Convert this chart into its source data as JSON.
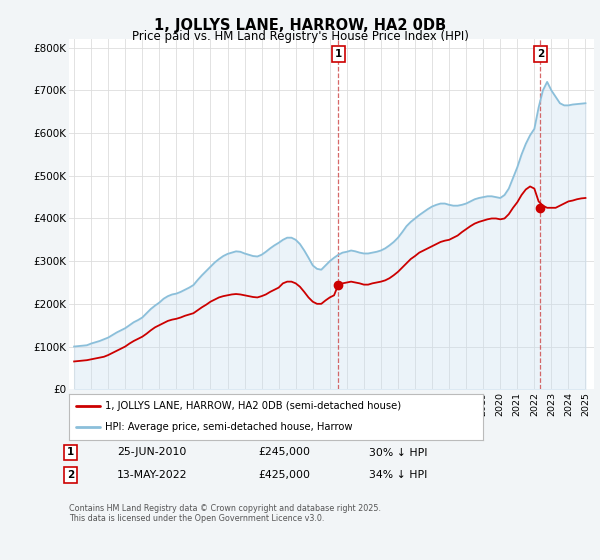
{
  "title": "1, JOLLYS LANE, HARROW, HA2 0DB",
  "subtitle": "Price paid vs. HM Land Registry's House Price Index (HPI)",
  "legend_label_red": "1, JOLLYS LANE, HARROW, HA2 0DB (semi-detached house)",
  "legend_label_blue": "HPI: Average price, semi-detached house, Harrow",
  "annotation1_date": "25-JUN-2010",
  "annotation1_price": "£245,000",
  "annotation1_hpi": "30% ↓ HPI",
  "annotation2_date": "13-MAY-2022",
  "annotation2_price": "£425,000",
  "annotation2_hpi": "34% ↓ HPI",
  "footer": "Contains HM Land Registry data © Crown copyright and database right 2025.\nThis data is licensed under the Open Government Licence v3.0.",
  "red_color": "#cc0000",
  "blue_color": "#8bbfda",
  "fill_color": "#c8dff0",
  "bg_color": "#f2f5f7",
  "plot_bg": "#ffffff",
  "ylim": [
    0,
    820000
  ],
  "yticks": [
    0,
    100000,
    200000,
    300000,
    400000,
    500000,
    600000,
    700000,
    800000
  ],
  "ytick_labels": [
    "£0",
    "£100K",
    "£200K",
    "£300K",
    "£400K",
    "£500K",
    "£600K",
    "£700K",
    "£800K"
  ],
  "hpi_x": [
    1995.0,
    1995.25,
    1995.5,
    1995.75,
    1996.0,
    1996.25,
    1996.5,
    1996.75,
    1997.0,
    1997.25,
    1997.5,
    1997.75,
    1998.0,
    1998.25,
    1998.5,
    1998.75,
    1999.0,
    1999.25,
    1999.5,
    1999.75,
    2000.0,
    2000.25,
    2000.5,
    2000.75,
    2001.0,
    2001.25,
    2001.5,
    2001.75,
    2002.0,
    2002.25,
    2002.5,
    2002.75,
    2003.0,
    2003.25,
    2003.5,
    2003.75,
    2004.0,
    2004.25,
    2004.5,
    2004.75,
    2005.0,
    2005.25,
    2005.5,
    2005.75,
    2006.0,
    2006.25,
    2006.5,
    2006.75,
    2007.0,
    2007.25,
    2007.5,
    2007.75,
    2008.0,
    2008.25,
    2008.5,
    2008.75,
    2009.0,
    2009.25,
    2009.5,
    2009.75,
    2010.0,
    2010.25,
    2010.5,
    2010.75,
    2011.0,
    2011.25,
    2011.5,
    2011.75,
    2012.0,
    2012.25,
    2012.5,
    2012.75,
    2013.0,
    2013.25,
    2013.5,
    2013.75,
    2014.0,
    2014.25,
    2014.5,
    2014.75,
    2015.0,
    2015.25,
    2015.5,
    2015.75,
    2016.0,
    2016.25,
    2016.5,
    2016.75,
    2017.0,
    2017.25,
    2017.5,
    2017.75,
    2018.0,
    2018.25,
    2018.5,
    2018.75,
    2019.0,
    2019.25,
    2019.5,
    2019.75,
    2020.0,
    2020.25,
    2020.5,
    2020.75,
    2021.0,
    2021.25,
    2021.5,
    2021.75,
    2022.0,
    2022.25,
    2022.5,
    2022.75,
    2023.0,
    2023.25,
    2023.5,
    2023.75,
    2024.0,
    2024.25,
    2024.5,
    2024.75,
    2025.0
  ],
  "hpi_y": [
    100000,
    101000,
    102000,
    103000,
    107000,
    110000,
    113000,
    117000,
    121000,
    127000,
    133000,
    138000,
    143000,
    150000,
    157000,
    162000,
    168000,
    178000,
    188000,
    196000,
    203000,
    212000,
    218000,
    222000,
    224000,
    228000,
    233000,
    238000,
    244000,
    256000,
    267000,
    277000,
    287000,
    297000,
    305000,
    312000,
    317000,
    320000,
    323000,
    322000,
    318000,
    315000,
    312000,
    311000,
    315000,
    322000,
    330000,
    337000,
    343000,
    350000,
    355000,
    355000,
    350000,
    340000,
    325000,
    308000,
    290000,
    282000,
    280000,
    290000,
    300000,
    308000,
    315000,
    320000,
    322000,
    325000,
    323000,
    320000,
    318000,
    318000,
    320000,
    322000,
    325000,
    330000,
    337000,
    345000,
    355000,
    368000,
    382000,
    392000,
    400000,
    408000,
    415000,
    422000,
    428000,
    432000,
    435000,
    435000,
    432000,
    430000,
    430000,
    432000,
    435000,
    440000,
    445000,
    448000,
    450000,
    452000,
    452000,
    450000,
    448000,
    455000,
    470000,
    495000,
    520000,
    550000,
    575000,
    595000,
    610000,
    660000,
    700000,
    720000,
    700000,
    685000,
    670000,
    665000,
    665000,
    667000,
    668000,
    669000,
    670000
  ],
  "red_x": [
    1995.0,
    1995.25,
    1995.5,
    1995.75,
    1996.0,
    1996.25,
    1996.5,
    1996.75,
    1997.0,
    1997.25,
    1997.5,
    1997.75,
    1998.0,
    1998.25,
    1998.5,
    1998.75,
    1999.0,
    1999.25,
    1999.5,
    1999.75,
    2000.0,
    2000.25,
    2000.5,
    2000.75,
    2001.0,
    2001.25,
    2001.5,
    2001.75,
    2002.0,
    2002.25,
    2002.5,
    2002.75,
    2003.0,
    2003.25,
    2003.5,
    2003.75,
    2004.0,
    2004.25,
    2004.5,
    2004.75,
    2005.0,
    2005.25,
    2005.5,
    2005.75,
    2006.0,
    2006.25,
    2006.5,
    2006.75,
    2007.0,
    2007.25,
    2007.5,
    2007.75,
    2008.0,
    2008.25,
    2008.5,
    2008.75,
    2009.0,
    2009.25,
    2009.5,
    2009.75,
    2010.0,
    2010.25,
    2010.5,
    2010.75,
    2011.0,
    2011.25,
    2011.5,
    2011.75,
    2012.0,
    2012.25,
    2012.5,
    2012.75,
    2013.0,
    2013.25,
    2013.5,
    2013.75,
    2014.0,
    2014.25,
    2014.5,
    2014.75,
    2015.0,
    2015.25,
    2015.5,
    2015.75,
    2016.0,
    2016.25,
    2016.5,
    2016.75,
    2017.0,
    2017.25,
    2017.5,
    2017.75,
    2018.0,
    2018.25,
    2018.5,
    2018.75,
    2019.0,
    2019.25,
    2019.5,
    2019.75,
    2020.0,
    2020.25,
    2020.5,
    2020.75,
    2021.0,
    2021.25,
    2021.5,
    2021.75,
    2022.0,
    2022.25,
    2022.5,
    2022.75,
    2023.0,
    2023.25,
    2023.5,
    2023.75,
    2024.0,
    2024.25,
    2024.5,
    2024.75,
    2025.0
  ],
  "red_y": [
    65000,
    66000,
    67000,
    68000,
    70000,
    72000,
    74000,
    76000,
    80000,
    85000,
    90000,
    95000,
    100000,
    107000,
    113000,
    118000,
    123000,
    130000,
    138000,
    145000,
    150000,
    155000,
    160000,
    163000,
    165000,
    168000,
    172000,
    175000,
    178000,
    185000,
    192000,
    198000,
    205000,
    210000,
    215000,
    218000,
    220000,
    222000,
    223000,
    222000,
    220000,
    218000,
    216000,
    215000,
    218000,
    222000,
    228000,
    233000,
    238000,
    248000,
    252000,
    252000,
    248000,
    240000,
    228000,
    215000,
    205000,
    200000,
    200000,
    208000,
    215000,
    220000,
    245000,
    248000,
    250000,
    252000,
    250000,
    248000,
    245000,
    245000,
    248000,
    250000,
    252000,
    255000,
    260000,
    267000,
    275000,
    285000,
    295000,
    305000,
    312000,
    320000,
    325000,
    330000,
    335000,
    340000,
    345000,
    348000,
    350000,
    355000,
    360000,
    368000,
    375000,
    382000,
    388000,
    392000,
    395000,
    398000,
    400000,
    400000,
    398000,
    400000,
    410000,
    425000,
    438000,
    455000,
    468000,
    475000,
    470000,
    440000,
    430000,
    425000,
    425000,
    425000,
    430000,
    435000,
    440000,
    442000,
    445000,
    447000,
    448000
  ],
  "sale1_x": 2010.5,
  "sale1_y": 245000,
  "sale2_x": 2022.35,
  "sale2_y": 425000,
  "xlim_left": 1994.7,
  "xlim_right": 2025.5
}
